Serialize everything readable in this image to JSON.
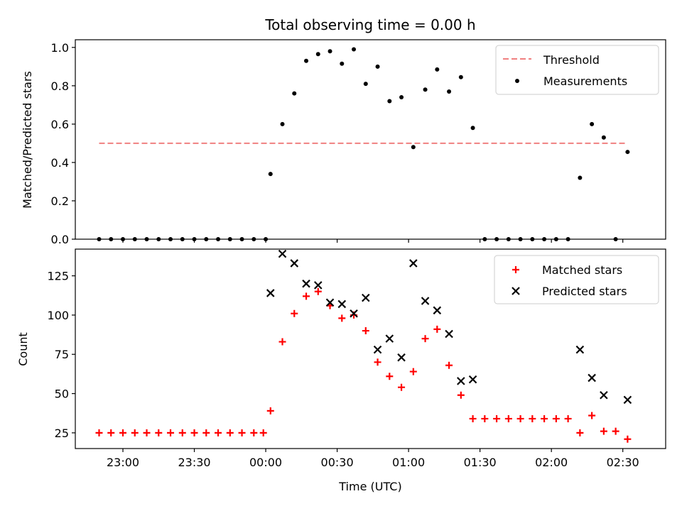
{
  "chart_data": [
    {
      "type": "scatter",
      "title": "Total observing time = 0.00 h",
      "xlabel": "",
      "ylabel": "Matched/Predicted stars",
      "ylim": [
        0,
        1.04
      ],
      "yticks": [
        "0.0",
        "0.2",
        "0.4",
        "0.6",
        "0.8",
        "1.0"
      ],
      "legend_position": "top-right",
      "threshold": {
        "name": "Threshold",
        "value": 0.5,
        "x_range": [
          "22:50",
          "02:32"
        ],
        "color": "#f08080",
        "style": "dashed"
      },
      "series": [
        {
          "name": "Measurements",
          "color": "#000000",
          "marker": "dot",
          "points": [
            [
              "22:50",
              0
            ],
            [
              "22:55",
              0
            ],
            [
              "23:00",
              0
            ],
            [
              "23:05",
              0
            ],
            [
              "23:10",
              0
            ],
            [
              "23:15",
              0
            ],
            [
              "23:20",
              0
            ],
            [
              "23:25",
              0
            ],
            [
              "23:30",
              0
            ],
            [
              "23:35",
              0
            ],
            [
              "23:40",
              0
            ],
            [
              "23:45",
              0
            ],
            [
              "23:50",
              0
            ],
            [
              "23:55",
              0
            ],
            [
              "00:00",
              0
            ],
            [
              "00:02",
              0.34
            ],
            [
              "00:07",
              0.6
            ],
            [
              "00:12",
              0.76
            ],
            [
              "00:17",
              0.93
            ],
            [
              "00:22",
              0.965
            ],
            [
              "00:27",
              0.98
            ],
            [
              "00:32",
              0.915
            ],
            [
              "00:37",
              0.99
            ],
            [
              "00:42",
              0.81
            ],
            [
              "00:47",
              0.9
            ],
            [
              "00:52",
              0.72
            ],
            [
              "00:57",
              0.74
            ],
            [
              "01:02",
              0.48
            ],
            [
              "01:07",
              0.78
            ],
            [
              "01:12",
              0.885
            ],
            [
              "01:17",
              0.77
            ],
            [
              "01:22",
              0.845
            ],
            [
              "01:27",
              0.58
            ],
            [
              "01:32",
              0
            ],
            [
              "01:37",
              0
            ],
            [
              "01:42",
              0
            ],
            [
              "01:47",
              0
            ],
            [
              "01:52",
              0
            ],
            [
              "01:57",
              0
            ],
            [
              "02:02",
              0
            ],
            [
              "02:07",
              0
            ],
            [
              "02:12",
              0.32
            ],
            [
              "02:17",
              0.6
            ],
            [
              "02:22",
              0.53
            ],
            [
              "02:27",
              0
            ],
            [
              "02:32",
              0.455
            ]
          ]
        }
      ]
    },
    {
      "type": "scatter",
      "title": "",
      "xlabel": "Time (UTC)",
      "ylabel": "Count",
      "ylim": [
        15,
        142
      ],
      "yticks": [
        "25",
        "50",
        "75",
        "100",
        "125"
      ],
      "xticks": [
        "23:00",
        "23:30",
        "00:00",
        "00:30",
        "01:00",
        "01:30",
        "02:00",
        "02:30"
      ],
      "legend_position": "top-right",
      "series": [
        {
          "name": "Matched stars",
          "color": "#ff0000",
          "marker": "plus",
          "points": [
            [
              "22:50",
              25
            ],
            [
              "22:55",
              25
            ],
            [
              "23:00",
              25
            ],
            [
              "23:05",
              25
            ],
            [
              "23:10",
              25
            ],
            [
              "23:15",
              25
            ],
            [
              "23:20",
              25
            ],
            [
              "23:25",
              25
            ],
            [
              "23:30",
              25
            ],
            [
              "23:35",
              25
            ],
            [
              "23:40",
              25
            ],
            [
              "23:45",
              25
            ],
            [
              "23:50",
              25
            ],
            [
              "23:55",
              25
            ],
            [
              "23:59",
              25
            ],
            [
              "00:02",
              39
            ],
            [
              "00:07",
              83
            ],
            [
              "00:12",
              101
            ],
            [
              "00:17",
              112
            ],
            [
              "00:22",
              115
            ],
            [
              "00:27",
              106
            ],
            [
              "00:32",
              98
            ],
            [
              "00:37",
              100
            ],
            [
              "00:42",
              90
            ],
            [
              "00:47",
              70
            ],
            [
              "00:52",
              61
            ],
            [
              "00:57",
              54
            ],
            [
              "01:02",
              64
            ],
            [
              "01:07",
              85
            ],
            [
              "01:12",
              91
            ],
            [
              "01:17",
              68
            ],
            [
              "01:22",
              49
            ],
            [
              "01:27",
              34
            ],
            [
              "01:32",
              34
            ],
            [
              "01:37",
              34
            ],
            [
              "01:42",
              34
            ],
            [
              "01:47",
              34
            ],
            [
              "01:52",
              34
            ],
            [
              "01:57",
              34
            ],
            [
              "02:02",
              34
            ],
            [
              "02:07",
              34
            ],
            [
              "02:12",
              25
            ],
            [
              "02:17",
              36
            ],
            [
              "02:22",
              26
            ],
            [
              "02:27",
              26
            ],
            [
              "02:32",
              21
            ]
          ]
        },
        {
          "name": "Predicted stars",
          "color": "#000000",
          "marker": "x",
          "points": [
            [
              "00:02",
              114
            ],
            [
              "00:07",
              139
            ],
            [
              "00:12",
              133
            ],
            [
              "00:17",
              120
            ],
            [
              "00:22",
              119
            ],
            [
              "00:27",
              108
            ],
            [
              "00:32",
              107
            ],
            [
              "00:37",
              101
            ],
            [
              "00:42",
              111
            ],
            [
              "00:47",
              78
            ],
            [
              "00:52",
              85
            ],
            [
              "00:57",
              73
            ],
            [
              "01:02",
              133
            ],
            [
              "01:07",
              109
            ],
            [
              "01:12",
              103
            ],
            [
              "01:17",
              88
            ],
            [
              "01:22",
              58
            ],
            [
              "01:27",
              59
            ],
            [
              "02:12",
              78
            ],
            [
              "02:17",
              60
            ],
            [
              "02:22",
              49
            ],
            [
              "02:32",
              46
            ]
          ]
        }
      ]
    }
  ]
}
